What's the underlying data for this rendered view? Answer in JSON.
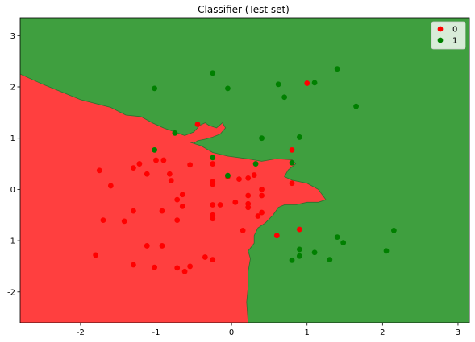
{
  "chart_data": {
    "type": "scatter",
    "title": "Classifier (Test set)",
    "xlabel": "",
    "ylabel": "",
    "xlim": [
      -2.8,
      3.15
    ],
    "ylim": [
      -2.6,
      3.35
    ],
    "x_ticks": [
      -2,
      -1,
      0,
      1,
      2,
      3
    ],
    "y_ticks": [
      -2,
      -1,
      0,
      1,
      2,
      3
    ],
    "grid": false,
    "legend_placement": "top-right",
    "region_colors": {
      "0": "#ff3f3f",
      "1": "#3f9f3f"
    },
    "decision_boundary": [
      [
        -2.8,
        2.25
      ],
      [
        -2.5,
        2.05
      ],
      [
        -2.0,
        1.75
      ],
      [
        -1.6,
        1.6
      ],
      [
        -1.4,
        1.45
      ],
      [
        -1.2,
        1.42
      ],
      [
        -1.05,
        1.3
      ],
      [
        -0.9,
        1.2
      ],
      [
        -0.75,
        1.12
      ],
      [
        -0.62,
        1.05
      ],
      [
        -0.5,
        1.12
      ],
      [
        -0.42,
        1.25
      ],
      [
        -0.35,
        1.3
      ],
      [
        -0.3,
        1.25
      ],
      [
        -0.2,
        1.2
      ],
      [
        -0.12,
        1.3
      ],
      [
        -0.08,
        1.2
      ],
      [
        -0.15,
        1.08
      ],
      [
        -0.25,
        1.02
      ],
      [
        -0.35,
        0.98
      ],
      [
        -0.45,
        0.95
      ],
      [
        -0.5,
        0.9
      ],
      [
        -0.55,
        0.92
      ],
      [
        -0.4,
        0.85
      ],
      [
        -0.25,
        0.72
      ],
      [
        -0.05,
        0.65
      ],
      [
        0.2,
        0.6
      ],
      [
        0.4,
        0.55
      ],
      [
        0.6,
        0.6
      ],
      [
        0.8,
        0.58
      ],
      [
        0.85,
        0.5
      ],
      [
        0.75,
        0.38
      ],
      [
        0.7,
        0.25
      ],
      [
        0.8,
        0.18
      ],
      [
        1.0,
        0.12
      ],
      [
        1.15,
        0.0
      ],
      [
        1.25,
        -0.2
      ],
      [
        1.15,
        -0.25
      ],
      [
        1.0,
        -0.25
      ],
      [
        0.85,
        -0.3
      ],
      [
        0.7,
        -0.3
      ],
      [
        0.62,
        -0.35
      ],
      [
        0.55,
        -0.5
      ],
      [
        0.45,
        -0.65
      ],
      [
        0.35,
        -0.75
      ],
      [
        0.3,
        -0.9
      ],
      [
        0.3,
        -1.05
      ],
      [
        0.22,
        -1.2
      ],
      [
        0.25,
        -1.35
      ],
      [
        0.22,
        -1.6
      ],
      [
        0.22,
        -1.9
      ],
      [
        0.2,
        -2.2
      ],
      [
        0.22,
        -2.6
      ]
    ],
    "series": [
      {
        "name": "0",
        "color": "#ff0000",
        "points": [
          [
            -1.75,
            0.37
          ],
          [
            -1.6,
            0.07
          ],
          [
            -1.3,
            0.42
          ],
          [
            -1.22,
            0.5
          ],
          [
            -1.12,
            0.3
          ],
          [
            -1.0,
            0.57
          ],
          [
            -0.9,
            0.57
          ],
          [
            -0.82,
            0.3
          ],
          [
            -0.8,
            0.17
          ],
          [
            -0.55,
            0.48
          ],
          [
            -0.25,
            0.5
          ],
          [
            -0.25,
            0.15
          ],
          [
            -0.25,
            0.1
          ],
          [
            -0.05,
            0.25
          ],
          [
            0.1,
            0.2
          ],
          [
            0.22,
            0.22
          ],
          [
            0.3,
            0.28
          ],
          [
            0.4,
            0.0
          ],
          [
            0.4,
            -0.12
          ],
          [
            0.22,
            -0.12
          ],
          [
            0.22,
            -0.35
          ],
          [
            0.22,
            -0.28
          ],
          [
            0.05,
            -0.25
          ],
          [
            -0.15,
            -0.3
          ],
          [
            -0.25,
            -0.3
          ],
          [
            -0.25,
            -0.5
          ],
          [
            -0.25,
            -0.57
          ],
          [
            -0.65,
            -0.1
          ],
          [
            -0.72,
            -0.2
          ],
          [
            -0.65,
            -0.33
          ],
          [
            -0.92,
            -0.42
          ],
          [
            -1.3,
            -0.42
          ],
          [
            -1.42,
            -0.62
          ],
          [
            -1.7,
            -0.6
          ],
          [
            -0.72,
            -0.6
          ],
          [
            -1.8,
            -1.28
          ],
          [
            -1.12,
            -1.1
          ],
          [
            -0.92,
            -1.1
          ],
          [
            -1.3,
            -1.47
          ],
          [
            -1.02,
            -1.52
          ],
          [
            -0.72,
            -1.53
          ],
          [
            -0.62,
            -1.6
          ],
          [
            -0.55,
            -1.5
          ],
          [
            -0.35,
            -1.32
          ],
          [
            -0.25,
            -1.37
          ],
          [
            0.15,
            -0.8
          ],
          [
            0.35,
            -0.52
          ],
          [
            0.4,
            -0.45
          ],
          [
            0.6,
            -0.9
          ],
          [
            0.9,
            -0.78
          ],
          [
            0.8,
            0.12
          ],
          [
            0.8,
            0.77
          ],
          [
            1.0,
            2.07
          ],
          [
            -0.45,
            1.27
          ]
        ]
      },
      {
        "name": "1",
        "color": "#008000",
        "points": [
          [
            -1.02,
            1.97
          ],
          [
            -0.25,
            2.27
          ],
          [
            -0.05,
            1.97
          ],
          [
            -0.75,
            1.1
          ],
          [
            -1.02,
            0.77
          ],
          [
            -0.25,
            0.62
          ],
          [
            -0.05,
            0.27
          ],
          [
            0.32,
            0.5
          ],
          [
            0.4,
            1.0
          ],
          [
            0.62,
            2.05
          ],
          [
            0.7,
            1.8
          ],
          [
            0.9,
            1.02
          ],
          [
            1.1,
            2.08
          ],
          [
            1.4,
            2.35
          ],
          [
            1.65,
            1.62
          ],
          [
            0.8,
            0.52
          ],
          [
            0.9,
            -1.17
          ],
          [
            0.9,
            -1.3
          ],
          [
            0.8,
            -1.38
          ],
          [
            1.1,
            -1.23
          ],
          [
            1.3,
            -1.37
          ],
          [
            1.4,
            -0.93
          ],
          [
            1.48,
            -1.04
          ],
          [
            2.05,
            -1.2
          ],
          [
            2.15,
            -0.8
          ]
        ]
      }
    ]
  }
}
